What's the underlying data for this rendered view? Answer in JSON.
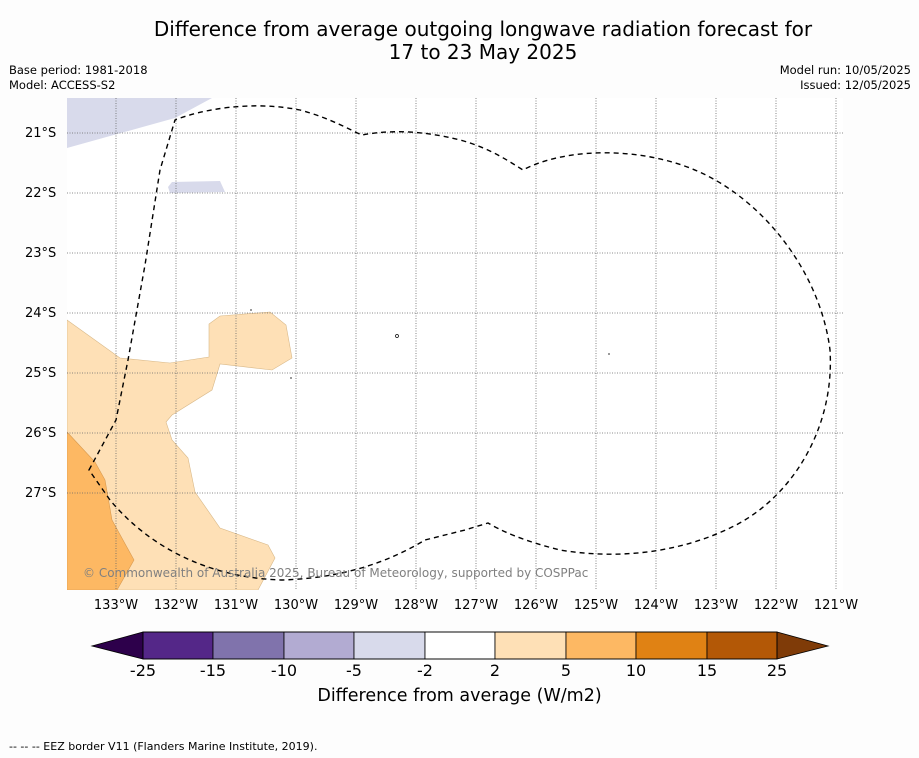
{
  "title_line1": "Difference from average outgoing longwave radiation forecast for",
  "title_line2": "17 to 23 May 2025",
  "meta": {
    "base_period": "Base period: 1981-2018",
    "model": "Model: ACCESS-S2",
    "model_run": "Model run: 10/05/2025",
    "issued": "Issued: 12/05/2025"
  },
  "map": {
    "latitude_labels": [
      "21°S",
      "22°S",
      "23°S",
      "24°S",
      "25°S",
      "26°S",
      "27°S"
    ],
    "longitude_labels": [
      "133°W",
      "132°W",
      "131°W",
      "130°W",
      "129°W",
      "128°W",
      "127°W",
      "126°W",
      "125°W",
      "124°W",
      "123°W",
      "122°W",
      "121°W"
    ],
    "copyright": "© Commonwealth of Australia 2025, Bureau of Meteorology, supported by COSPPac",
    "eez_style": "dashed black",
    "gridlines": "dotted grey"
  },
  "colorbar": {
    "title": "Difference from average (W/m2)",
    "ticks": [
      "-25",
      "-15",
      "-10",
      "-5",
      "-2",
      "2",
      "5",
      "10",
      "15",
      "25"
    ],
    "colors": {
      "below_min": "#2d004b",
      "bins": [
        "#542788",
        "#8073ac",
        "#b2abd2",
        "#d8daeb",
        "#ffffff",
        "#fee0b6",
        "#fdb863",
        "#e08214",
        "#b35806"
      ],
      "above_max": "#7f3b08"
    }
  },
  "footer": "--  --  -- EEZ border V11 (Flanders Marine Institute, 2019)."
}
